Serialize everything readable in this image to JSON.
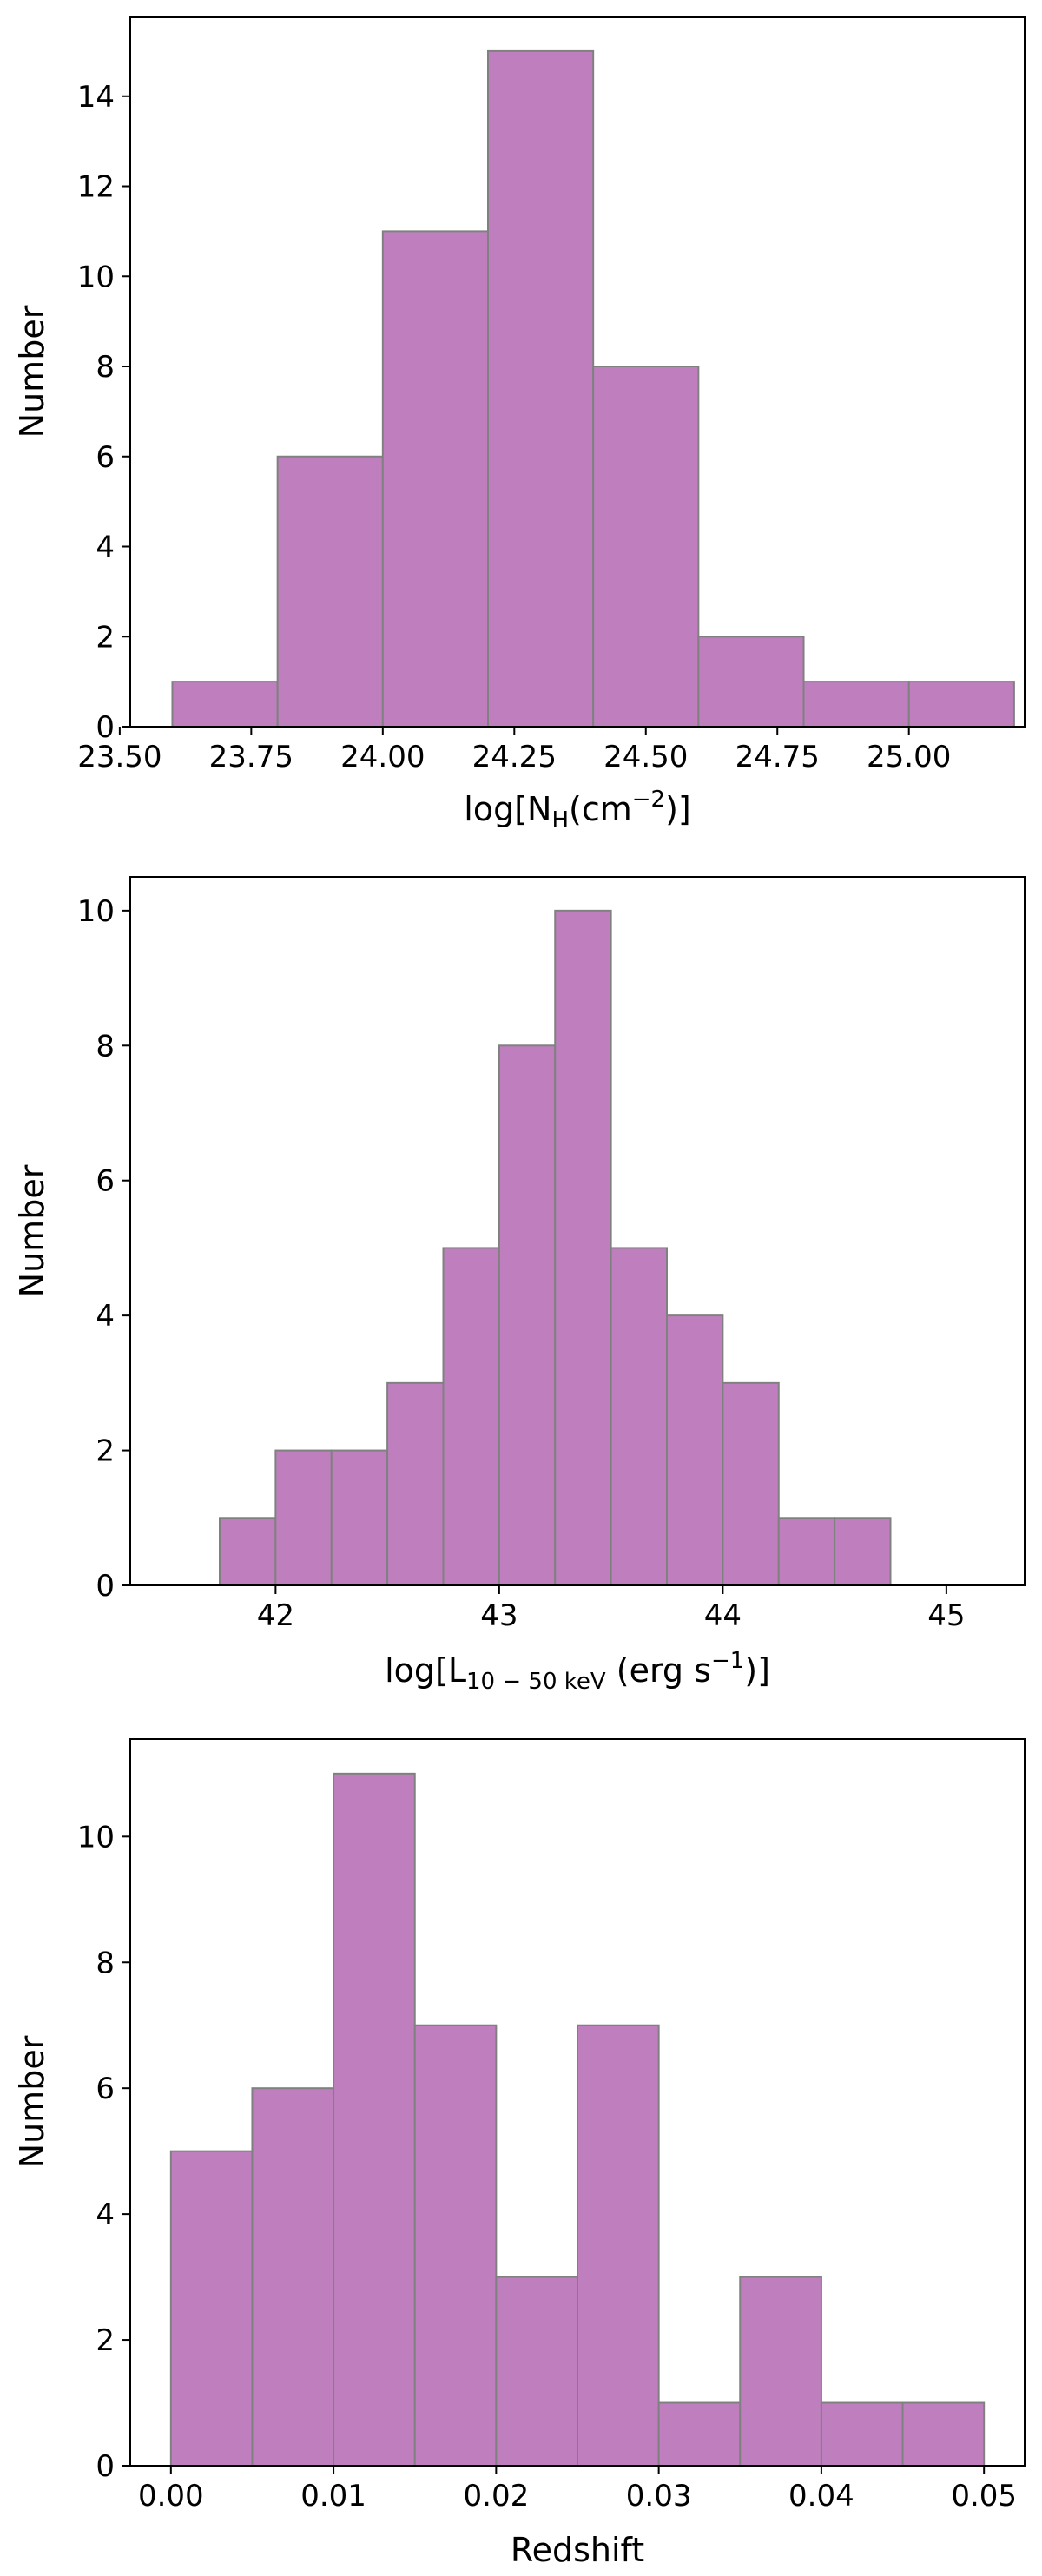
{
  "colors": {
    "bar_fill": "#bf7fbf",
    "bar_edge": "#808080",
    "axis": "#000000",
    "background": "#ffffff"
  },
  "chart_data": [
    {
      "type": "histogram",
      "xlabel": "log[N_H(cm^-2)]",
      "xlabel_parts": {
        "pre": "log[N",
        "sub": "H",
        "mid": "(cm",
        "sup": "−2",
        "post": ")]"
      },
      "ylabel": "Number",
      "xlim": [
        23.52,
        25.22
      ],
      "ylim": [
        0,
        15.75
      ],
      "xticks": [
        23.5,
        23.75,
        24.0,
        24.25,
        24.5,
        24.75,
        25.0
      ],
      "xtick_labels": [
        "23.50",
        "23.75",
        "24.00",
        "24.25",
        "24.50",
        "24.75",
        "25.00"
      ],
      "yticks": [
        0,
        2,
        4,
        6,
        8,
        10,
        12,
        14
      ],
      "ytick_labels": [
        "0",
        "2",
        "4",
        "6",
        "8",
        "10",
        "12",
        "14"
      ],
      "bin_edges": [
        23.6,
        23.8,
        24.0,
        24.2,
        24.4,
        24.6,
        24.8,
        25.0,
        25.2
      ],
      "counts": [
        1,
        6,
        11,
        15,
        8,
        2,
        1,
        1
      ]
    },
    {
      "type": "histogram",
      "xlabel": "log[L_10−50 keV (erg s^-1)]",
      "xlabel_parts": {
        "pre": "log[L",
        "sub": "10 − 50 keV",
        "mid": " (erg s",
        "sup": "−1",
        "post": ")]"
      },
      "ylabel": "Number",
      "xlim": [
        41.35,
        45.35
      ],
      "ylim": [
        0,
        10.5
      ],
      "xticks": [
        42,
        43,
        44,
        45
      ],
      "xtick_labels": [
        "42",
        "43",
        "44",
        "45"
      ],
      "yticks": [
        0,
        2,
        4,
        6,
        8,
        10
      ],
      "ytick_labels": [
        "0",
        "2",
        "4",
        "6",
        "8",
        "10"
      ],
      "bin_edges": [
        41.75,
        42.0,
        42.25,
        42.5,
        42.75,
        43.0,
        43.25,
        43.5,
        43.75,
        44.0,
        44.25,
        44.5,
        44.75
      ],
      "counts": [
        1,
        2,
        2,
        3,
        5,
        8,
        10,
        5,
        4,
        3,
        1,
        1
      ]
    },
    {
      "type": "histogram",
      "xlabel": "Redshift",
      "ylabel": "Number",
      "xlim": [
        -0.0025,
        0.0525
      ],
      "ylim": [
        0,
        11.55
      ],
      "xticks": [
        0.0,
        0.01,
        0.02,
        0.03,
        0.04,
        0.05
      ],
      "xtick_labels": [
        "0.00",
        "0.01",
        "0.02",
        "0.03",
        "0.04",
        "0.05"
      ],
      "yticks": [
        0,
        2,
        4,
        6,
        8,
        10
      ],
      "ytick_labels": [
        "0",
        "2",
        "4",
        "6",
        "8",
        "10"
      ],
      "bin_edges": [
        0.0,
        0.005,
        0.01,
        0.015,
        0.02,
        0.025,
        0.03,
        0.035,
        0.04,
        0.045,
        0.05
      ],
      "counts": [
        5,
        6,
        11,
        7,
        3,
        7,
        1,
        3,
        1,
        1
      ]
    }
  ]
}
